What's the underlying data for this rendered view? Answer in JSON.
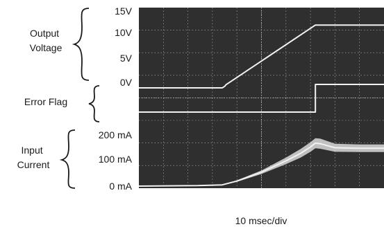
{
  "chart_data": {
    "type": "line",
    "title": "",
    "xlabel": "10 msec/div",
    "x_units": "msec",
    "x_divisions": 10,
    "xlim": [
      0,
      100
    ],
    "group_labels": {
      "output_voltage": "Output\nVoltage",
      "error_flag": "Error Flag",
      "input_current": "Input\nCurrent"
    },
    "tick_labels": {
      "voltage": [
        "15V",
        "10V",
        "5V",
        "0V"
      ],
      "current": [
        "200 mA",
        "100 mA",
        "0 mA"
      ]
    },
    "series": [
      {
        "key": "output_voltage",
        "units": "V",
        "ylim": [
          0,
          15
        ],
        "x": [
          0,
          34,
          35,
          35.5,
          72,
          75,
          100
        ],
        "y": [
          0,
          0,
          0.3,
          0.6,
          12.5,
          12.5,
          12.5
        ]
      },
      {
        "key": "error_flag",
        "units": "level",
        "ylim": [
          0,
          1
        ],
        "x": [
          0,
          72,
          72,
          100
        ],
        "y": [
          0,
          0,
          1,
          1
        ]
      },
      {
        "key": "input_current",
        "units": "mA",
        "ylim": [
          0,
          200
        ],
        "x": [
          0,
          24,
          34,
          40,
          50,
          60,
          66,
          70,
          72,
          74,
          80,
          90,
          100
        ],
        "y": [
          0,
          2,
          5,
          20,
          55,
          100,
          130,
          155,
          170,
          168,
          152,
          150,
          150
        ],
        "band": [
          0,
          0,
          0,
          6,
          14,
          26,
          34,
          38,
          40,
          40,
          32,
          30,
          30
        ]
      }
    ],
    "colors": {
      "screen": "#2f2f2f",
      "grid": "#b8b8b8",
      "trace": "#f2f2f2",
      "band": "#d9d9d9"
    }
  }
}
